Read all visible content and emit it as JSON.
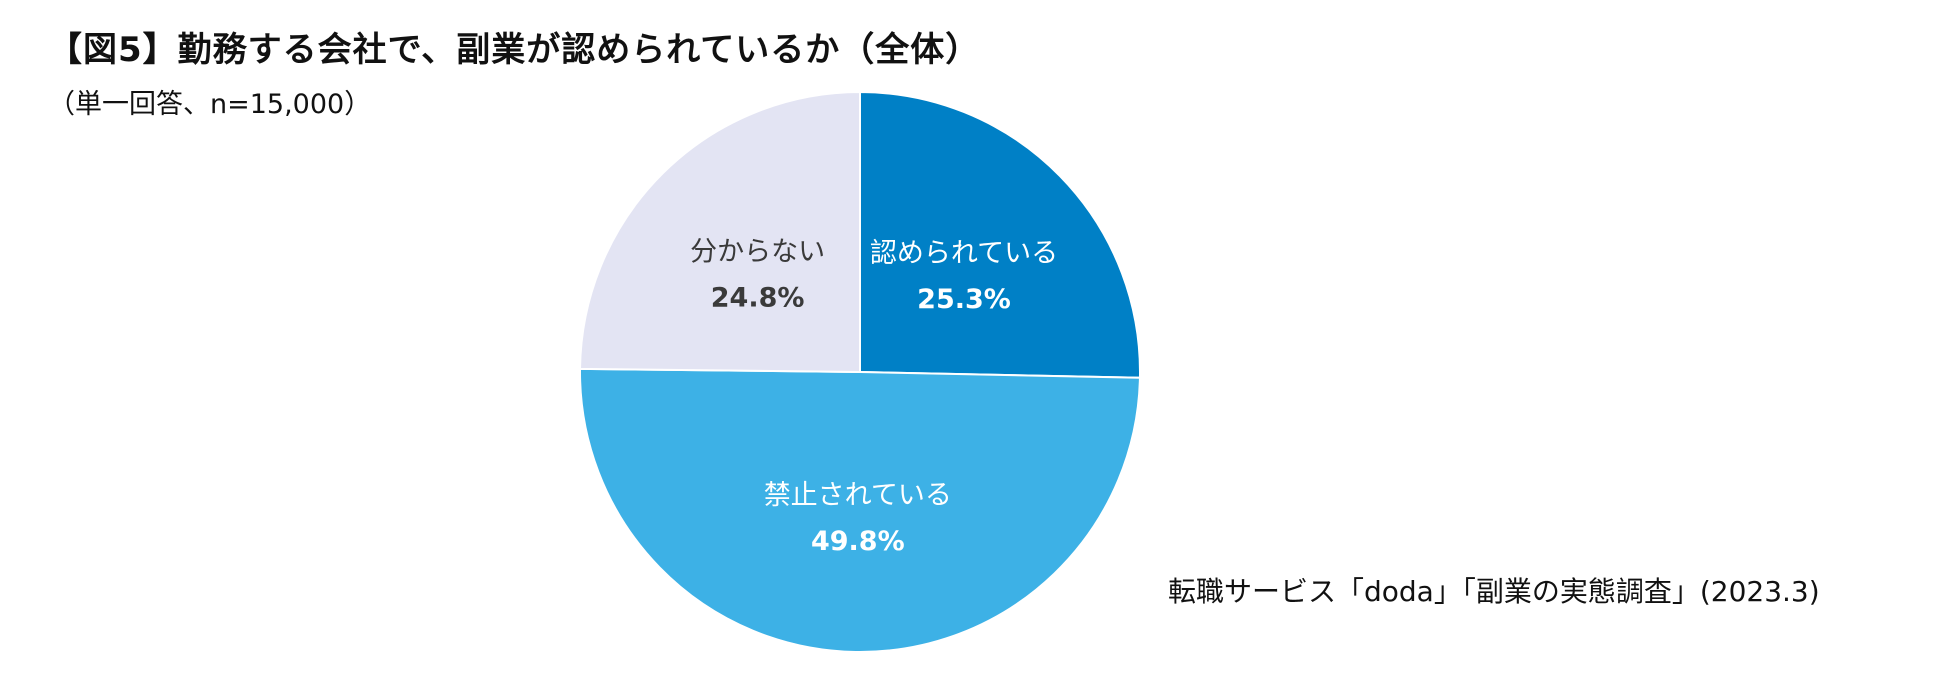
{
  "header": {
    "title": "【図5】勤務する会社で、副業が認められているか（全体）",
    "subtitle": "（単一回答、n=15,000）"
  },
  "chart_data": {
    "type": "pie",
    "title": "【図5】勤務する会社で、副業が認められているか（全体）",
    "subtitle": "（単一回答、n=15,000）",
    "start": "12 o'clock",
    "direction": "clockwise",
    "slices": [
      {
        "label": "認められている",
        "value": 25.3,
        "display": "25.3%",
        "color": "#0080C6",
        "text_color": "#ffffff"
      },
      {
        "label": "禁止されている",
        "value": 49.8,
        "display": "49.8%",
        "color": "#3DB1E6",
        "text_color": "#ffffff"
      },
      {
        "label": "分からない",
        "value": 24.8,
        "display": "24.8%",
        "color": "#E3E4F3",
        "text_color": "#3a3a3a"
      }
    ]
  },
  "footer": {
    "source": "転職サービス「doda」「副業の実態調査」(2023.3)"
  }
}
